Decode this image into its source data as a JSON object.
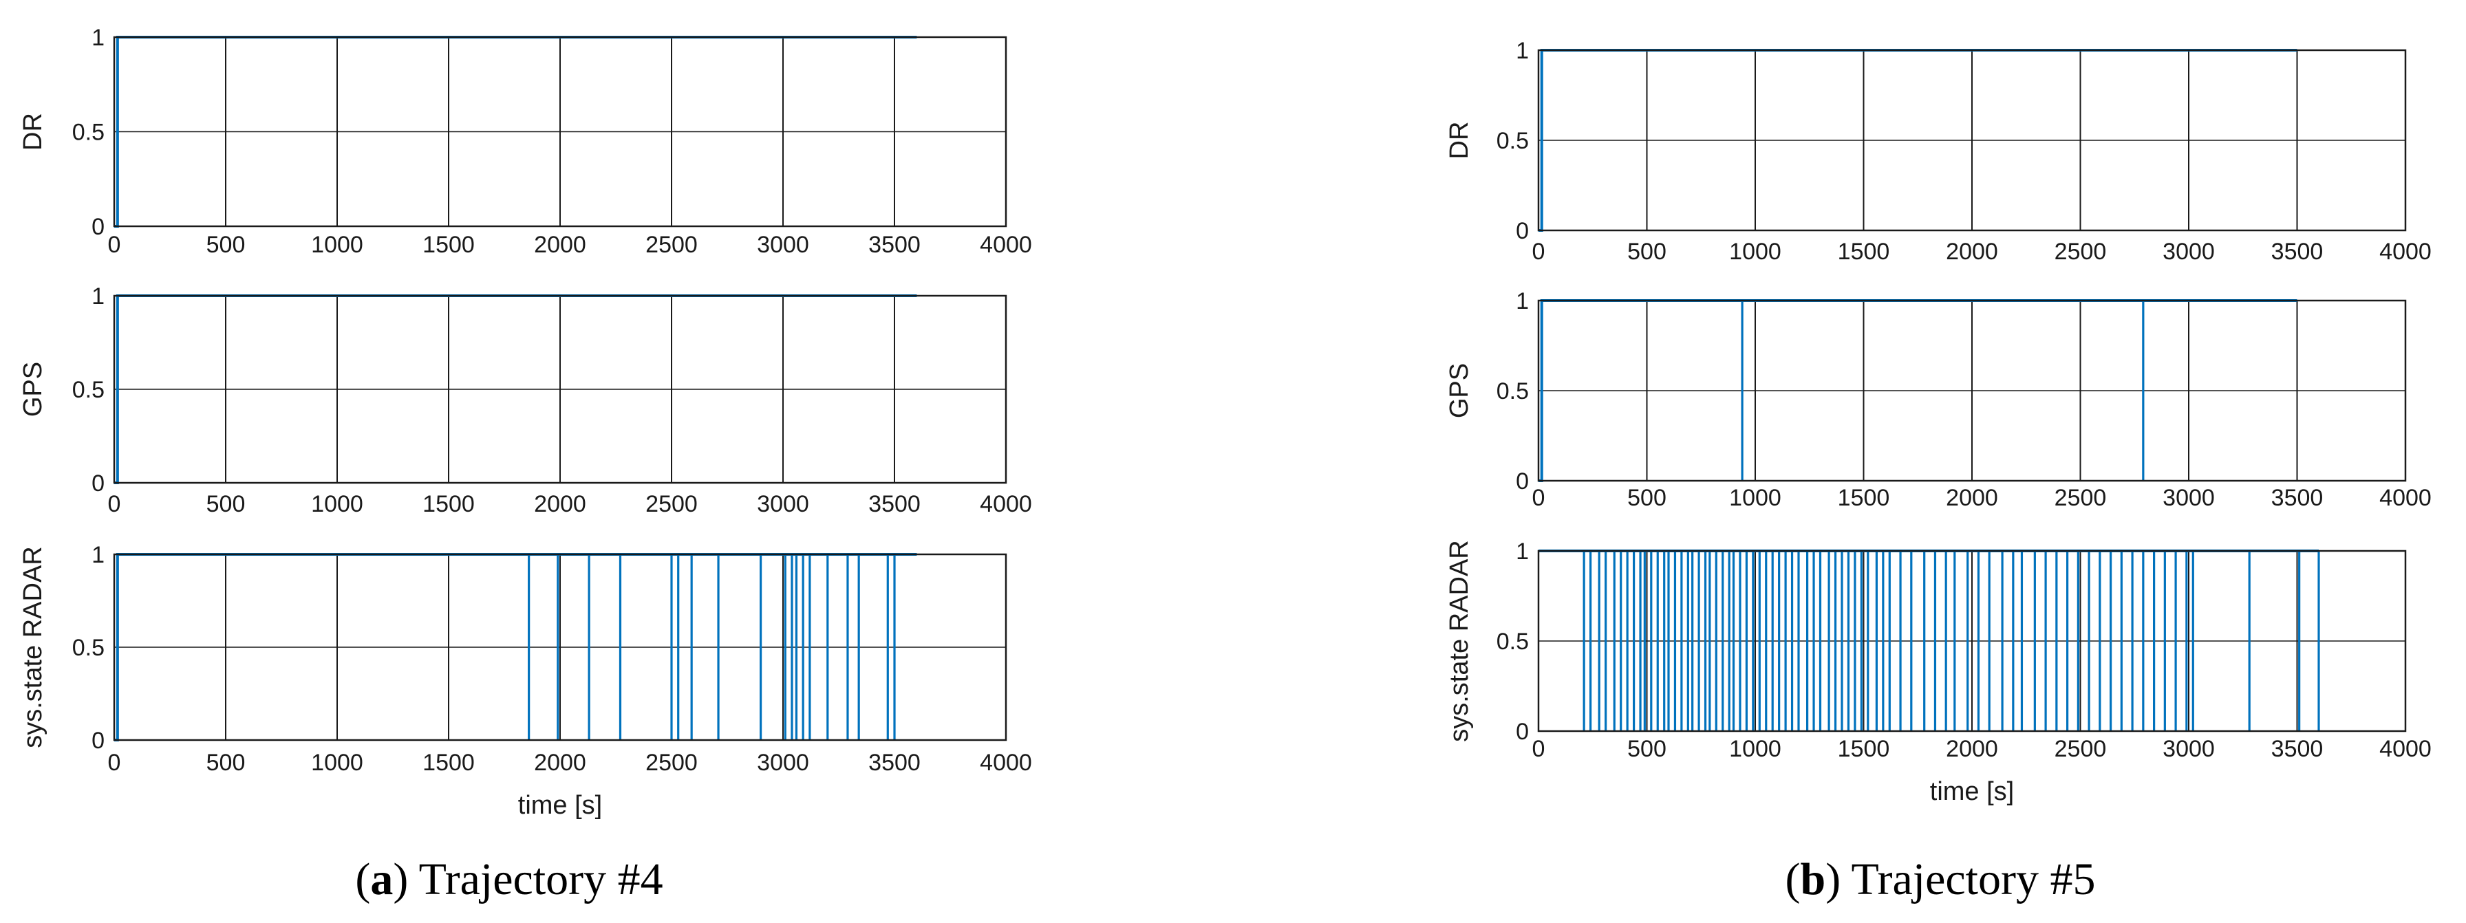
{
  "panels": [
    {
      "caption_letter": "a",
      "caption_text": "Trajectory #4",
      "xlabel": "time [s]",
      "subplots": [
        {
          "ylabel": "DR",
          "type": "line",
          "xlim": [
            0,
            4000
          ],
          "ylim": [
            0,
            1
          ],
          "xticks": [
            0,
            500,
            1000,
            1500,
            2000,
            2500,
            3000,
            3500,
            4000
          ],
          "yticks": [
            0,
            0.5,
            1
          ],
          "series": [
            {
              "x": [
                0,
                15,
                15,
                3600
              ],
              "y": [
                0,
                0,
                1,
                1
              ]
            }
          ]
        },
        {
          "ylabel": "GPS",
          "type": "line",
          "xlim": [
            0,
            4000
          ],
          "ylim": [
            0,
            1
          ],
          "xticks": [
            0,
            500,
            1000,
            1500,
            2000,
            2500,
            3000,
            3500,
            4000
          ],
          "yticks": [
            0,
            0.5,
            1
          ],
          "series": [
            {
              "x": [
                0,
                15,
                15,
                3600
              ],
              "y": [
                0,
                0,
                1,
                1
              ]
            }
          ]
        },
        {
          "ylabel": "sys.state RADAR",
          "type": "line",
          "xlim": [
            0,
            4000
          ],
          "ylim": [
            0,
            1
          ],
          "xticks": [
            0,
            500,
            1000,
            1500,
            2000,
            2500,
            3000,
            3500,
            4000
          ],
          "yticks": [
            0,
            0.5,
            1
          ],
          "series": [
            {
              "x": [
                0,
                15,
                15,
                3600
              ],
              "y": [
                0,
                0,
                1,
                1
              ]
            }
          ],
          "dips": [
            1860,
            1990,
            2130,
            2270,
            2500,
            2530,
            2590,
            2710,
            2900,
            3010,
            3040,
            3060,
            3090,
            3120,
            3200,
            3290,
            3340,
            3470,
            3500
          ]
        }
      ]
    },
    {
      "caption_letter": "b",
      "caption_text": "Trajectory #5",
      "xlabel": "time [s]",
      "subplots": [
        {
          "ylabel": "DR",
          "type": "line",
          "xlim": [
            0,
            4000
          ],
          "ylim": [
            0,
            1
          ],
          "xticks": [
            0,
            500,
            1000,
            1500,
            2000,
            2500,
            3000,
            3500,
            4000
          ],
          "yticks": [
            0,
            0.5,
            1
          ],
          "series": [
            {
              "x": [
                0,
                15,
                15,
                3500
              ],
              "y": [
                0,
                0,
                1,
                1
              ]
            }
          ]
        },
        {
          "ylabel": "GPS",
          "type": "line",
          "xlim": [
            0,
            4000
          ],
          "ylim": [
            0,
            1
          ],
          "xticks": [
            0,
            500,
            1000,
            1500,
            2000,
            2500,
            3000,
            3500,
            4000
          ],
          "yticks": [
            0,
            0.5,
            1
          ],
          "series": [
            {
              "x": [
                0,
                15,
                15,
                3500
              ],
              "y": [
                0,
                0,
                1,
                1
              ]
            }
          ],
          "dips": [
            940,
            2790
          ]
        },
        {
          "ylabel": "sys.state RADAR",
          "type": "line",
          "xlim": [
            0,
            4000
          ],
          "ylim": [
            0,
            1
          ],
          "xticks": [
            0,
            500,
            1000,
            1500,
            2000,
            2500,
            3000,
            3500,
            4000
          ],
          "yticks": [
            0,
            0.5,
            1
          ],
          "series": [
            {
              "x": [
                0,
                3600
              ],
              "y": [
                1,
                1
              ]
            }
          ],
          "dips": [
            210,
            240,
            280,
            310,
            350,
            380,
            410,
            440,
            470,
            490,
            520,
            550,
            580,
            600,
            630,
            660,
            690,
            710,
            740,
            770,
            790,
            820,
            850,
            880,
            900,
            930,
            960,
            990,
            1020,
            1050,
            1080,
            1110,
            1140,
            1170,
            1200,
            1240,
            1270,
            1300,
            1340,
            1370,
            1400,
            1430,
            1460,
            1490,
            1520,
            1560,
            1590,
            1620,
            1670,
            1720,
            1780,
            1830,
            1880,
            1920,
            1980,
            2030,
            2080,
            2140,
            2190,
            2230,
            2290,
            2340,
            2390,
            2440,
            2490,
            2540,
            2590,
            2640,
            2690,
            2740,
            2790,
            2840,
            2890,
            2940,
            2990,
            3020,
            3280,
            3510,
            3600
          ]
        }
      ]
    }
  ],
  "colors": {
    "line": "#0072bd",
    "grid": "#1a1a1a",
    "axes": "#1a1a1a"
  }
}
